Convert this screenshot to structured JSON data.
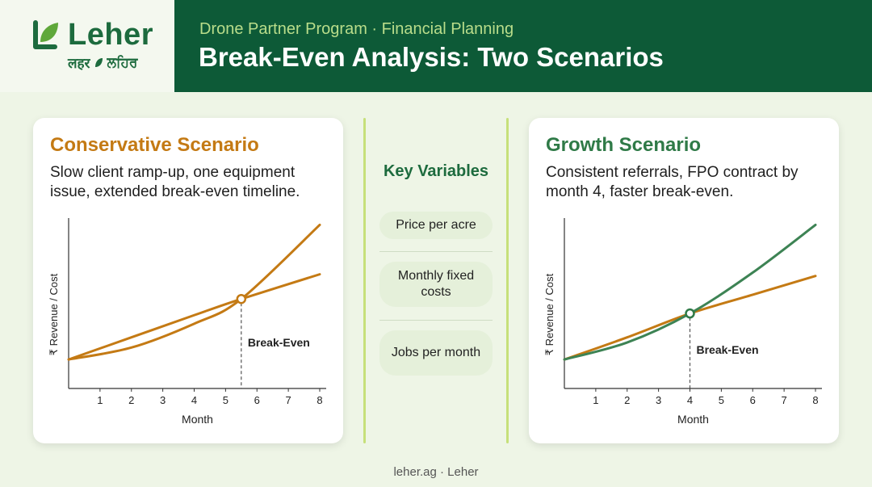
{
  "brand": {
    "name": "Leher",
    "subtitle_left": "लहर",
    "subtitle_right": "ਲਹਿਰ"
  },
  "header": {
    "kicker": "Drone Partner Program · Financial Planning",
    "title": "Break-Even Analysis: Two Scenarios"
  },
  "colors": {
    "dark_green": "#0d5a37",
    "orange": "#c47a14",
    "green_line": "#3d8354",
    "light_bg": "#eef5e6"
  },
  "conservative": {
    "title": "Conservative Scenario",
    "description": "Slow client ramp-up, one equipment issue, extended break-even timeline.",
    "break_even_label": "Break-Even"
  },
  "growth": {
    "title": "Growth Scenario",
    "description": "Consistent referrals, FPO contract by month 4, faster break-even.",
    "break_even_label": "Break-Even"
  },
  "key_variables": {
    "title": "Key Variables",
    "items": [
      "Price per acre",
      "Monthly fixed costs",
      "Jobs per month"
    ]
  },
  "chart_data": [
    {
      "type": "line",
      "xlabel": "Month",
      "ylabel": "₹ Revenue / Cost",
      "x_ticks": [
        1,
        2,
        3,
        4,
        5,
        6,
        7,
        8
      ],
      "xlim": [
        0,
        8
      ],
      "ylim": [
        0,
        10
      ],
      "series": [
        {
          "color": "#c47a14",
          "x": [
            0,
            2,
            4,
            5.5,
            8
          ],
          "y": [
            1.7,
            3.0,
            4.3,
            5.25,
            6.7
          ]
        },
        {
          "color": "#c47a14",
          "x": [
            0,
            2,
            4,
            5.5,
            8
          ],
          "y": [
            1.7,
            2.4,
            3.8,
            5.25,
            9.6
          ]
        }
      ],
      "break_even": {
        "x": 5.5,
        "y": 5.25,
        "label": "Break-Even"
      }
    },
    {
      "type": "line",
      "xlabel": "Month",
      "ylabel": "₹ Revenue / Cost",
      "x_ticks": [
        1,
        2,
        3,
        4,
        5,
        6,
        7,
        8
      ],
      "xlim": [
        0,
        8
      ],
      "ylim": [
        0,
        10
      ],
      "series": [
        {
          "color": "#c47a14",
          "x": [
            0,
            2,
            4,
            6,
            8
          ],
          "y": [
            1.7,
            3.0,
            4.4,
            5.5,
            6.6
          ]
        },
        {
          "color": "#3d8354",
          "x": [
            0,
            2,
            4,
            6,
            8
          ],
          "y": [
            1.7,
            2.7,
            4.4,
            6.8,
            9.6
          ]
        }
      ],
      "break_even": {
        "x": 4,
        "y": 4.4,
        "label": "Break-Even"
      }
    }
  ],
  "footer": "leher.ag · Leher"
}
